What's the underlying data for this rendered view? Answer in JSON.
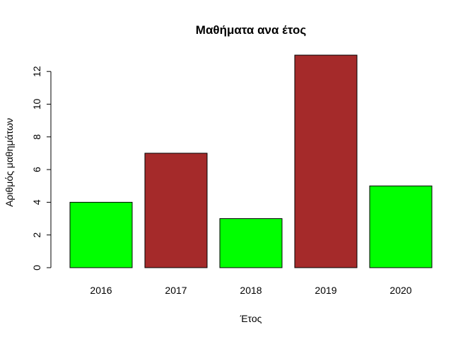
{
  "chart_data": {
    "type": "bar",
    "title": "Μαθήματα ανα έτος",
    "xlabel": "Έτος",
    "ylabel": "Αριθμός μαθημάτων",
    "categories": [
      "2016",
      "2017",
      "2018",
      "2019",
      "2020"
    ],
    "values": [
      4,
      7,
      3,
      13,
      5
    ],
    "bar_colors": [
      "#00ff00",
      "#a52a2a",
      "#00ff00",
      "#a52a2a",
      "#00ff00"
    ],
    "ylim": [
      0,
      13
    ],
    "yticks": [
      0,
      2,
      4,
      6,
      8,
      10,
      12
    ],
    "grid": false,
    "legend": "none"
  }
}
